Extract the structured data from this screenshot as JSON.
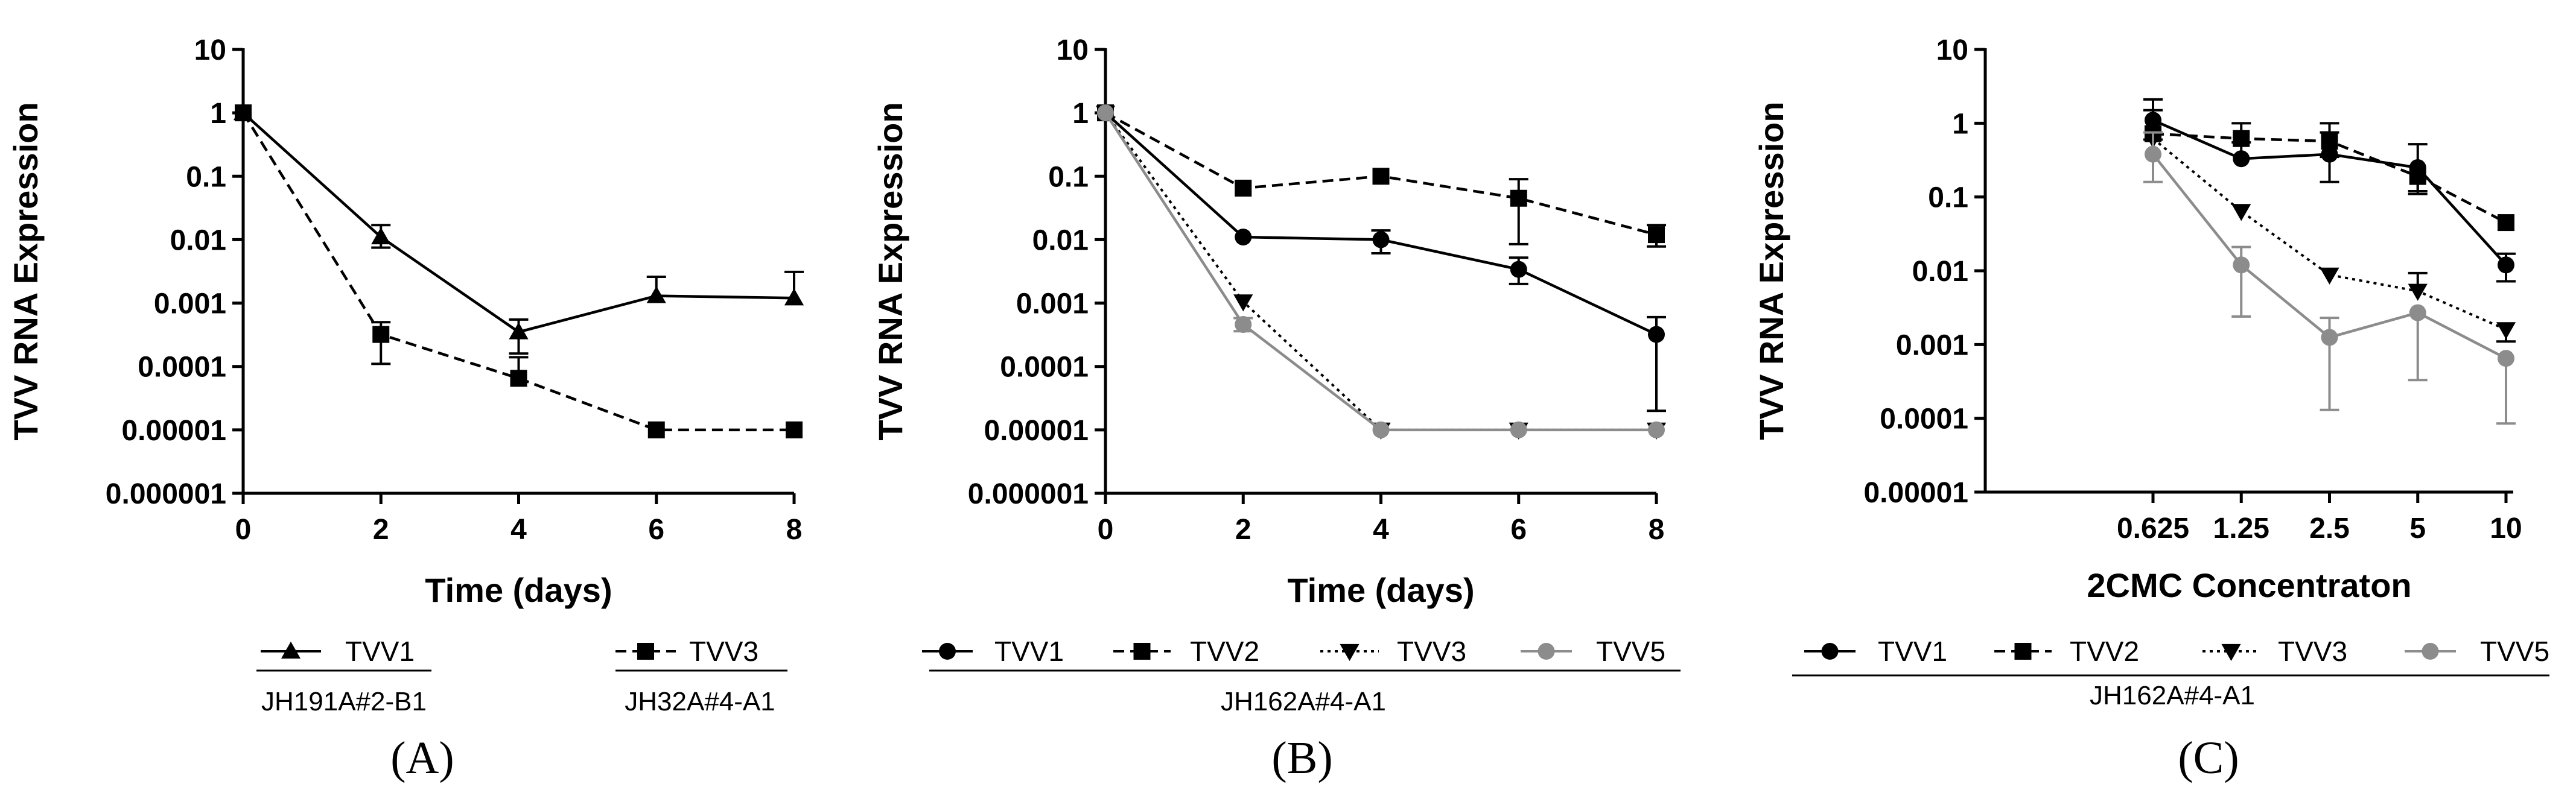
{
  "chart_data": [
    {
      "panel": "A",
      "type": "line",
      "ylabel": "TVV RNA Expression",
      "xlabel": "Time (days)",
      "yscale": "log",
      "ylim": [
        1e-06,
        10
      ],
      "yticks": [
        "0.000001",
        "0.00001",
        "0.0001",
        "0.001",
        "0.01",
        "0.1",
        "1",
        "10"
      ],
      "xlim": [
        0,
        8
      ],
      "x": [
        0,
        2,
        4,
        6,
        8
      ],
      "xticks": [
        "0",
        "2",
        "4",
        "6",
        "8"
      ],
      "series": [
        {
          "name": "TVV1",
          "marker": "triangle",
          "dash": "solid",
          "color": "#000000",
          "values": [
            1,
            0.011,
            0.00035,
            0.0013,
            0.0012
          ],
          "err_hi": [
            1,
            0.017,
            0.00055,
            0.0026,
            0.0031
          ],
          "err_lo": [
            1,
            0.0075,
            0.00016,
            0.0013,
            0.0012
          ]
        },
        {
          "name": "TVV3",
          "marker": "square",
          "dash": "dashed",
          "color": "#000000",
          "values": [
            1,
            0.00032,
            6.5e-05,
            1e-05,
            1e-05
          ],
          "err_hi": [
            1,
            0.0005,
            0.00014,
            1e-05,
            1e-05
          ],
          "err_lo": [
            1,
            0.00011,
            6.5e-05,
            1e-05,
            1e-05
          ]
        }
      ],
      "legend_groups": [
        {
          "entries": [
            "TVV1"
          ],
          "label": "JH191A#2-B1"
        },
        {
          "entries": [
            "TVV3"
          ],
          "label": "JH32A#4-A1"
        }
      ],
      "panel_label": "(A)"
    },
    {
      "panel": "B",
      "type": "line",
      "ylabel": "TVV RNA Expression",
      "xlabel": "Time (days)",
      "yscale": "log",
      "ylim": [
        1e-06,
        10
      ],
      "yticks": [
        "0.000001",
        "0.00001",
        "0.0001",
        "0.001",
        "0.01",
        "0.1",
        "1",
        "10"
      ],
      "xlim": [
        0,
        8
      ],
      "x": [
        0,
        2,
        4,
        6,
        8
      ],
      "xticks": [
        "0",
        "2",
        "4",
        "6",
        "8"
      ],
      "series": [
        {
          "name": "TVV1",
          "marker": "circle",
          "dash": "solid",
          "color": "#000000",
          "values": [
            1,
            0.011,
            0.01,
            0.0034,
            0.00032
          ],
          "err_hi": [
            1,
            0.011,
            0.014,
            0.0052,
            0.0006
          ],
          "err_lo": [
            1,
            0.011,
            0.0061,
            0.002,
            2e-05
          ]
        },
        {
          "name": "TVV2",
          "marker": "square",
          "dash": "dashed",
          "color": "#000000",
          "values": [
            1,
            0.065,
            0.1,
            0.045,
            0.012
          ],
          "err_hi": [
            1,
            0.065,
            0.1,
            0.09,
            0.017
          ],
          "err_lo": [
            1,
            0.065,
            0.1,
            0.0085,
            0.0078
          ]
        },
        {
          "name": "TVV3",
          "marker": "triangle-down",
          "dash": "dotted",
          "color": "#000000",
          "values": [
            1,
            0.00105,
            1e-05,
            1e-05,
            1e-05
          ],
          "err_hi": [
            1,
            0.00105,
            1e-05,
            1e-05,
            1e-05
          ],
          "err_lo": [
            1,
            0.00105,
            1e-05,
            1e-05,
            1e-05
          ]
        },
        {
          "name": "TVV5",
          "marker": "circle",
          "dash": "solid",
          "color": "#8c8c8c",
          "values": [
            1,
            0.00046,
            1e-05,
            1e-05,
            1e-05
          ],
          "err_hi": [
            1,
            0.00058,
            1e-05,
            1e-05,
            1e-05
          ],
          "err_lo": [
            1,
            0.00036,
            1e-05,
            1e-05,
            1e-05
          ]
        }
      ],
      "legend_groups": [
        {
          "entries": [
            "TVV1",
            "TVV2",
            "TVV3",
            "TVV5"
          ],
          "label": "JH162A#4-A1"
        }
      ],
      "panel_label": "(B)"
    },
    {
      "panel": "C",
      "type": "line",
      "ylabel": "TVV RNA Expression",
      "xlabel": "2CMC Concentraton",
      "yscale": "log",
      "ylim": [
        1e-05,
        10
      ],
      "yticks": [
        "0.00001",
        "0.0001",
        "0.001",
        "0.01",
        "0.1",
        "1",
        "10"
      ],
      "x": [
        0.625,
        1.25,
        2.5,
        5,
        10
      ],
      "xticks": [
        "0.625",
        "1.25",
        "2.5",
        "5",
        "10"
      ],
      "series": [
        {
          "name": "TVV1",
          "marker": "circle",
          "dash": "solid",
          "color": "#000000",
          "values": [
            1.1,
            0.33,
            0.38,
            0.25,
            0.012
          ],
          "err_hi": [
            2.1,
            0.55,
            0.75,
            0.52,
            0.017
          ],
          "err_lo": [
            0.6,
            0.33,
            0.16,
            0.12,
            0.0072
          ]
        },
        {
          "name": "TVV2",
          "marker": "square",
          "dash": "dashed",
          "color": "#000000",
          "values": [
            0.72,
            0.62,
            0.57,
            0.19,
            0.045
          ],
          "err_hi": [
            1.5,
            1.0,
            1.0,
            0.19,
            0.045
          ],
          "err_lo": [
            0.72,
            0.62,
            0.35,
            0.11,
            0.045
          ]
        },
        {
          "name": "TVV3",
          "marker": "triangle-down",
          "dash": "dotted",
          "color": "#000000",
          "values": [
            0.62,
            0.064,
            0.0088,
            0.0053,
            0.0016
          ],
          "err_hi": [
            0.62,
            0.064,
            0.0088,
            0.0093,
            0.0016
          ],
          "err_lo": [
            0.62,
            0.064,
            0.0088,
            0.0053,
            0.0011
          ]
        },
        {
          "name": "TVV5",
          "marker": "circle",
          "dash": "solid",
          "color": "#8c8c8c",
          "values": [
            0.38,
            0.012,
            0.00125,
            0.0027,
            0.00065
          ],
          "err_hi": [
            0.75,
            0.021,
            0.0023,
            0.0027,
            0.00065
          ],
          "err_lo": [
            0.16,
            0.0024,
            0.00013,
            0.00033,
            8.5e-05
          ]
        }
      ],
      "legend_groups": [
        {
          "entries": [
            "TVV1",
            "TVV2",
            "TVV3",
            "TVV5"
          ],
          "label": "JH162A#4-A1"
        }
      ],
      "panel_label": "(C)"
    }
  ]
}
